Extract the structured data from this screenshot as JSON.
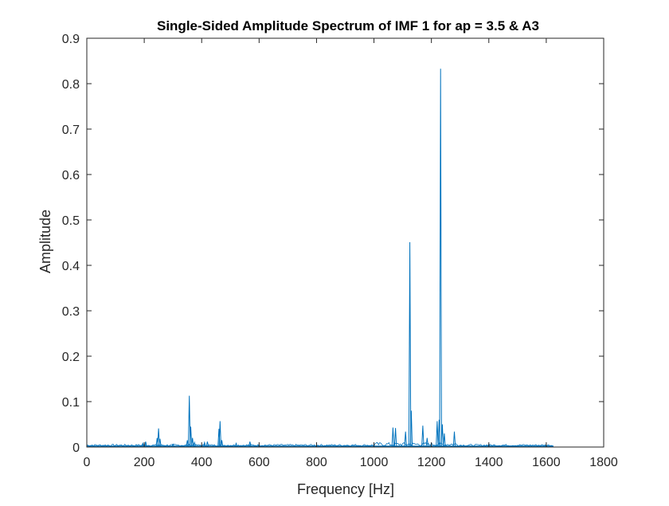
{
  "chart_data": {
    "type": "line",
    "title": "Single-Sided Amplitude Spectrum of IMF 1 for ap = 3.5 & A3",
    "xlabel": "Frequency [Hz]",
    "ylabel": "Amplitude",
    "xlim": [
      0,
      1800
    ],
    "ylim": [
      0,
      0.9
    ],
    "xticks": [
      "0",
      "200",
      "400",
      "600",
      "800",
      "1000",
      "1200",
      "1400",
      "1600",
      "1800"
    ],
    "yticks": [
      "0",
      "0.1",
      "0.2",
      "0.3",
      "0.4",
      "0.5",
      "0.6",
      "0.7",
      "0.8",
      "0.9"
    ],
    "grid": false,
    "legend": "none",
    "line_color": "#0072BD",
    "noise_floor": 0.002,
    "data_end_x": 1625,
    "peaks": [
      {
        "x": 195,
        "y": 0.008
      },
      {
        "x": 205,
        "y": 0.012
      },
      {
        "x": 245,
        "y": 0.02
      },
      {
        "x": 250,
        "y": 0.041
      },
      {
        "x": 255,
        "y": 0.018
      },
      {
        "x": 300,
        "y": 0.006
      },
      {
        "x": 350,
        "y": 0.015
      },
      {
        "x": 357,
        "y": 0.113
      },
      {
        "x": 362,
        "y": 0.045
      },
      {
        "x": 368,
        "y": 0.02
      },
      {
        "x": 375,
        "y": 0.01
      },
      {
        "x": 410,
        "y": 0.01
      },
      {
        "x": 420,
        "y": 0.012
      },
      {
        "x": 460,
        "y": 0.04
      },
      {
        "x": 464,
        "y": 0.057
      },
      {
        "x": 470,
        "y": 0.015
      },
      {
        "x": 520,
        "y": 0.008
      },
      {
        "x": 568,
        "y": 0.012
      },
      {
        "x": 600,
        "y": 0.004
      },
      {
        "x": 1066,
        "y": 0.043
      },
      {
        "x": 1075,
        "y": 0.042
      },
      {
        "x": 1110,
        "y": 0.034
      },
      {
        "x": 1125,
        "y": 0.451
      },
      {
        "x": 1130,
        "y": 0.08
      },
      {
        "x": 1170,
        "y": 0.047
      },
      {
        "x": 1185,
        "y": 0.02
      },
      {
        "x": 1220,
        "y": 0.057
      },
      {
        "x": 1227,
        "y": 0.06
      },
      {
        "x": 1232,
        "y": 0.833
      },
      {
        "x": 1238,
        "y": 0.05
      },
      {
        "x": 1245,
        "y": 0.03
      },
      {
        "x": 1280,
        "y": 0.034
      },
      {
        "x": 1400,
        "y": 0.006
      },
      {
        "x": 1600,
        "y": 0.004
      }
    ]
  }
}
